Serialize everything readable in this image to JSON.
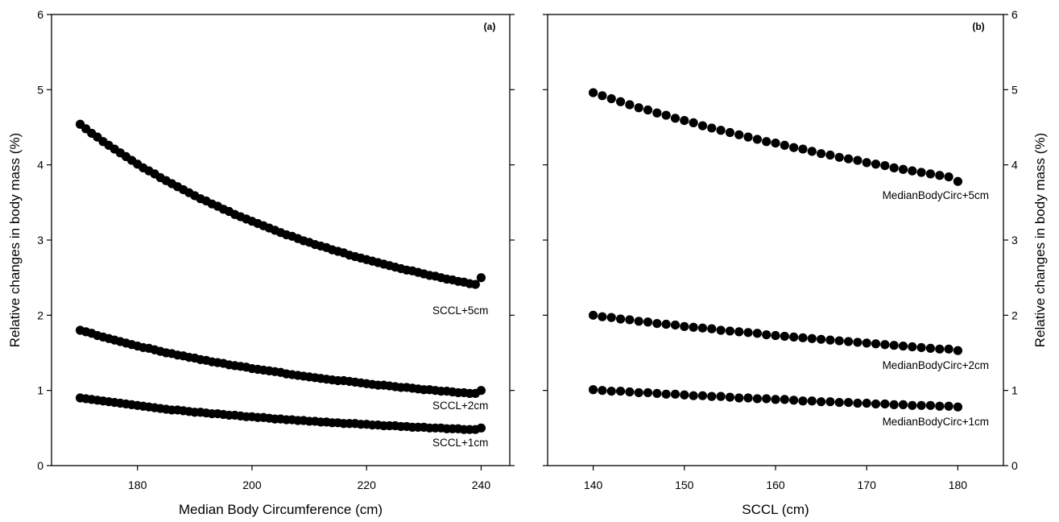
{
  "chart_data": [
    {
      "type": "scatter",
      "panel_label": "(a)",
      "xlabel": "Median Body Circumference (cm)",
      "ylabel": "Relative changes in body mass (%)",
      "xlim": [
        165,
        245
      ],
      "ylim": [
        0,
        6
      ],
      "xticks": [
        180,
        200,
        220,
        240
      ],
      "yticks": [
        0,
        1,
        2,
        3,
        4,
        5,
        6
      ],
      "y_axis_side": "left",
      "grid": false,
      "legend": "none",
      "series": [
        {
          "name": "SCCL+5cm",
          "x": [
            170,
            171,
            172,
            173,
            174,
            175,
            176,
            177,
            178,
            179,
            180,
            181,
            182,
            183,
            184,
            185,
            186,
            187,
            188,
            189,
            190,
            191,
            192,
            193,
            194,
            195,
            196,
            197,
            198,
            199,
            200,
            201,
            202,
            203,
            204,
            205,
            206,
            207,
            208,
            209,
            210,
            211,
            212,
            213,
            214,
            215,
            216,
            217,
            218,
            219,
            220,
            221,
            222,
            223,
            224,
            225,
            226,
            227,
            228,
            229,
            230,
            231,
            232,
            233,
            234,
            235,
            236,
            237,
            238,
            239,
            240
          ],
          "y": [
            4.54,
            4.48,
            4.42,
            4.37,
            4.31,
            4.26,
            4.21,
            4.16,
            4.11,
            4.06,
            4.01,
            3.96,
            3.92,
            3.88,
            3.83,
            3.79,
            3.75,
            3.71,
            3.67,
            3.63,
            3.59,
            3.55,
            3.52,
            3.48,
            3.45,
            3.41,
            3.38,
            3.34,
            3.31,
            3.28,
            3.25,
            3.22,
            3.19,
            3.16,
            3.13,
            3.1,
            3.07,
            3.05,
            3.02,
            2.99,
            2.97,
            2.94,
            2.92,
            2.9,
            2.87,
            2.85,
            2.83,
            2.8,
            2.78,
            2.76,
            2.74,
            2.72,
            2.7,
            2.68,
            2.66,
            2.64,
            2.62,
            2.6,
            2.59,
            2.57,
            2.55,
            2.53,
            2.52,
            2.5,
            2.48,
            2.47,
            2.45,
            2.44,
            2.42,
            2.41,
            2.5
          ],
          "label_text": "SCCL+5cm"
        },
        {
          "name": "SCCL+2cm",
          "x": [
            170,
            171,
            172,
            173,
            174,
            175,
            176,
            177,
            178,
            179,
            180,
            181,
            182,
            183,
            184,
            185,
            186,
            187,
            188,
            189,
            190,
            191,
            192,
            193,
            194,
            195,
            196,
            197,
            198,
            199,
            200,
            201,
            202,
            203,
            204,
            205,
            206,
            207,
            208,
            209,
            210,
            211,
            212,
            213,
            214,
            215,
            216,
            217,
            218,
            219,
            220,
            221,
            222,
            223,
            224,
            225,
            226,
            227,
            228,
            229,
            230,
            231,
            232,
            233,
            234,
            235,
            236,
            237,
            238,
            239,
            240
          ],
          "y": [
            1.8,
            1.78,
            1.76,
            1.73,
            1.71,
            1.69,
            1.67,
            1.65,
            1.63,
            1.61,
            1.59,
            1.57,
            1.56,
            1.54,
            1.52,
            1.5,
            1.49,
            1.47,
            1.46,
            1.44,
            1.43,
            1.41,
            1.4,
            1.38,
            1.37,
            1.36,
            1.34,
            1.33,
            1.32,
            1.31,
            1.29,
            1.28,
            1.27,
            1.26,
            1.25,
            1.24,
            1.22,
            1.21,
            1.2,
            1.19,
            1.18,
            1.17,
            1.16,
            1.15,
            1.14,
            1.13,
            1.13,
            1.12,
            1.11,
            1.1,
            1.09,
            1.08,
            1.07,
            1.07,
            1.06,
            1.05,
            1.04,
            1.04,
            1.03,
            1.02,
            1.01,
            1.01,
            1.0,
            0.99,
            0.99,
            0.98,
            0.97,
            0.97,
            0.96,
            0.96,
            1.0
          ],
          "label_text": "SCCL+2cm"
        },
        {
          "name": "SCCL+1cm",
          "x": [
            170,
            171,
            172,
            173,
            174,
            175,
            176,
            177,
            178,
            179,
            180,
            181,
            182,
            183,
            184,
            185,
            186,
            187,
            188,
            189,
            190,
            191,
            192,
            193,
            194,
            195,
            196,
            197,
            198,
            199,
            200,
            201,
            202,
            203,
            204,
            205,
            206,
            207,
            208,
            209,
            210,
            211,
            212,
            213,
            214,
            215,
            216,
            217,
            218,
            219,
            220,
            221,
            222,
            223,
            224,
            225,
            226,
            227,
            228,
            229,
            230,
            231,
            232,
            233,
            234,
            235,
            236,
            237,
            238,
            239,
            240
          ],
          "y": [
            0.9,
            0.89,
            0.88,
            0.87,
            0.86,
            0.85,
            0.84,
            0.83,
            0.82,
            0.81,
            0.8,
            0.79,
            0.78,
            0.77,
            0.76,
            0.75,
            0.74,
            0.74,
            0.73,
            0.72,
            0.71,
            0.71,
            0.7,
            0.69,
            0.69,
            0.68,
            0.67,
            0.67,
            0.66,
            0.65,
            0.65,
            0.64,
            0.64,
            0.63,
            0.62,
            0.62,
            0.61,
            0.61,
            0.6,
            0.6,
            0.59,
            0.59,
            0.58,
            0.58,
            0.57,
            0.57,
            0.56,
            0.56,
            0.56,
            0.55,
            0.55,
            0.54,
            0.54,
            0.53,
            0.53,
            0.53,
            0.52,
            0.52,
            0.51,
            0.51,
            0.51,
            0.5,
            0.5,
            0.5,
            0.49,
            0.49,
            0.49,
            0.48,
            0.48,
            0.48,
            0.5
          ],
          "label_text": "SCCL+1cm"
        }
      ]
    },
    {
      "type": "scatter",
      "panel_label": "(b)",
      "xlabel": "SCCL (cm)",
      "ylabel": "Relative changes in body mass (%)",
      "xlim": [
        135,
        185
      ],
      "ylim": [
        0,
        6
      ],
      "xticks": [
        140,
        150,
        160,
        170,
        180
      ],
      "yticks": [
        0,
        1,
        2,
        3,
        4,
        5,
        6
      ],
      "y_axis_side": "right",
      "grid": false,
      "legend": "none",
      "series": [
        {
          "name": "MedianBodyCirc+5cm",
          "x": [
            140,
            141,
            142,
            143,
            144,
            145,
            146,
            147,
            148,
            149,
            150,
            151,
            152,
            153,
            154,
            155,
            156,
            157,
            158,
            159,
            160,
            161,
            162,
            163,
            164,
            165,
            166,
            167,
            168,
            169,
            170,
            171,
            172,
            173,
            174,
            175,
            176,
            177,
            178,
            179,
            180
          ],
          "y": [
            4.96,
            4.92,
            4.88,
            4.84,
            4.8,
            4.76,
            4.73,
            4.69,
            4.66,
            4.62,
            4.59,
            4.56,
            4.52,
            4.49,
            4.46,
            4.43,
            4.4,
            4.37,
            4.34,
            4.31,
            4.29,
            4.26,
            4.23,
            4.21,
            4.18,
            4.15,
            4.13,
            4.1,
            4.08,
            4.06,
            4.03,
            4.01,
            3.99,
            3.96,
            3.94,
            3.92,
            3.9,
            3.88,
            3.86,
            3.84,
            3.78
          ],
          "label_text": "MedianBodyCirc+5cm"
        },
        {
          "name": "MedianBodyCirc+2cm",
          "x": [
            140,
            141,
            142,
            143,
            144,
            145,
            146,
            147,
            148,
            149,
            150,
            151,
            152,
            153,
            154,
            155,
            156,
            157,
            158,
            159,
            160,
            161,
            162,
            163,
            164,
            165,
            166,
            167,
            168,
            169,
            170,
            171,
            172,
            173,
            174,
            175,
            176,
            177,
            178,
            179,
            180
          ],
          "y": [
            2.0,
            1.98,
            1.97,
            1.95,
            1.94,
            1.92,
            1.91,
            1.89,
            1.88,
            1.87,
            1.85,
            1.84,
            1.83,
            1.82,
            1.8,
            1.79,
            1.78,
            1.77,
            1.76,
            1.74,
            1.73,
            1.72,
            1.71,
            1.7,
            1.69,
            1.68,
            1.67,
            1.66,
            1.65,
            1.64,
            1.63,
            1.62,
            1.61,
            1.6,
            1.59,
            1.58,
            1.57,
            1.56,
            1.55,
            1.55,
            1.53
          ],
          "label_text": "MedianBodyCirc+2cm"
        },
        {
          "name": "MedianBodyCirc+1cm",
          "x": [
            140,
            141,
            142,
            143,
            144,
            145,
            146,
            147,
            148,
            149,
            150,
            151,
            152,
            153,
            154,
            155,
            156,
            157,
            158,
            159,
            160,
            161,
            162,
            163,
            164,
            165,
            166,
            167,
            168,
            169,
            170,
            171,
            172,
            173,
            174,
            175,
            176,
            177,
            178,
            179,
            180
          ],
          "y": [
            1.01,
            1.0,
            0.99,
            0.99,
            0.98,
            0.97,
            0.97,
            0.96,
            0.95,
            0.95,
            0.94,
            0.93,
            0.93,
            0.92,
            0.92,
            0.91,
            0.9,
            0.9,
            0.89,
            0.89,
            0.88,
            0.88,
            0.87,
            0.86,
            0.86,
            0.85,
            0.85,
            0.84,
            0.84,
            0.83,
            0.83,
            0.82,
            0.82,
            0.81,
            0.81,
            0.8,
            0.8,
            0.8,
            0.79,
            0.79,
            0.78
          ],
          "label_text": "MedianBodyCirc+1cm"
        }
      ]
    }
  ]
}
